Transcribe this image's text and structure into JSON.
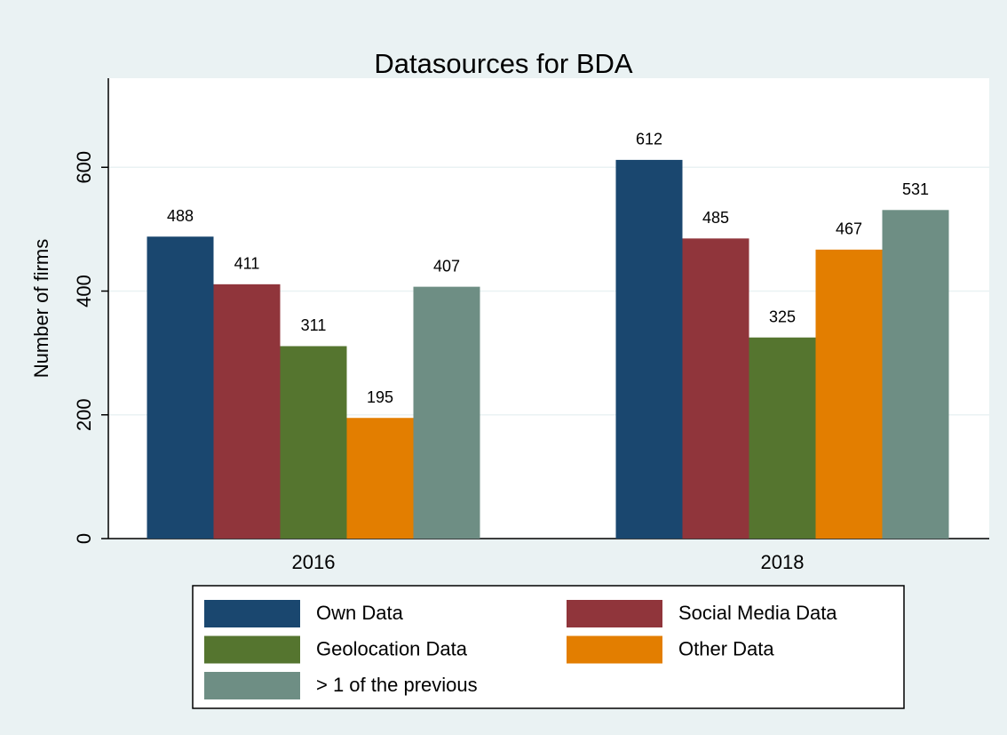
{
  "chart_data": {
    "type": "bar",
    "title": "Datasources for BDA",
    "y_label": "Number of firms",
    "categories": [
      "2016",
      "2018"
    ],
    "series": [
      {
        "name": "Own Data",
        "color": "#1a476f",
        "values": [
          488,
          612
        ]
      },
      {
        "name": "Social Media Data",
        "color": "#90353b",
        "values": [
          411,
          485
        ]
      },
      {
        "name": "Geolocation Data",
        "color": "#55752f",
        "values": [
          311,
          325
        ]
      },
      {
        "name": "Other Data",
        "color": "#e37e00",
        "values": [
          195,
          467
        ]
      },
      {
        "name": "> 1 of the previous",
        "color": "#6e8e84",
        "values": [
          407,
          531
        ]
      }
    ],
    "ylim": [
      0,
      744
    ],
    "yticks": [
      0,
      200,
      400,
      600
    ],
    "grid": true
  }
}
